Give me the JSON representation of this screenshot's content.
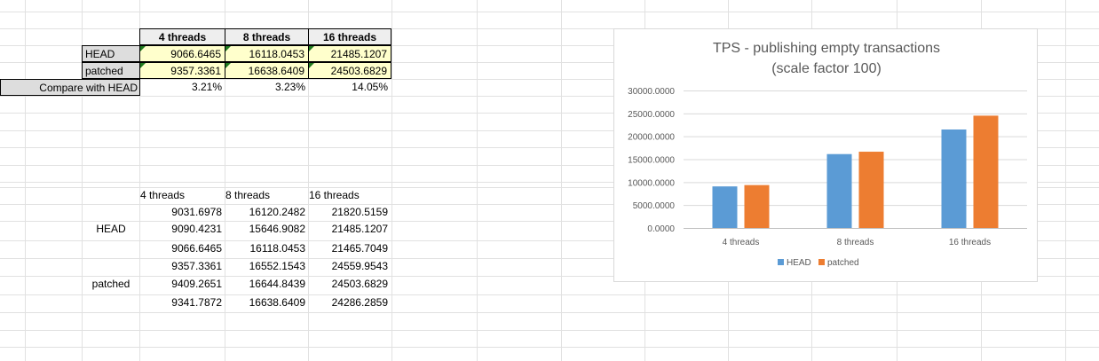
{
  "top_table": {
    "headers": [
      "4 threads",
      "8 threads",
      "16 threads"
    ],
    "rows": [
      {
        "label": "HEAD",
        "values": [
          "9066.6465",
          "16118.0453",
          "21485.1207"
        ]
      },
      {
        "label": "patched",
        "values": [
          "9357.3361",
          "16638.6409",
          "24503.6829"
        ]
      }
    ],
    "compare": {
      "label": "Compare with HEAD",
      "values": [
        "3.21%",
        "3.23%",
        "14.05%"
      ]
    }
  },
  "raw_table": {
    "headers": [
      "4 threads",
      "8 threads",
      "16 threads"
    ],
    "groups": [
      {
        "label": "HEAD",
        "rows": [
          [
            "9031.6978",
            "16120.2482",
            "21820.5159"
          ],
          [
            "9090.4231",
            "15646.9082",
            "21485.1207"
          ],
          [
            "9066.6465",
            "16118.0453",
            "21465.7049"
          ]
        ]
      },
      {
        "label": "patched",
        "rows": [
          [
            "9357.3361",
            "16552.1543",
            "24559.9543"
          ],
          [
            "9409.2651",
            "16644.8439",
            "24503.6829"
          ],
          [
            "9341.7872",
            "16638.6409",
            "24286.2859"
          ]
        ]
      }
    ]
  },
  "chart_data": {
    "type": "bar",
    "title_lines": [
      "TPS - publishing empty transactions",
      "(scale factor 100)"
    ],
    "categories": [
      "4 threads",
      "8 threads",
      "16 threads"
    ],
    "series": [
      {
        "name": "HEAD",
        "color": "#5b9bd5",
        "values": [
          9066.6465,
          16118.0453,
          21485.1207
        ]
      },
      {
        "name": "patched",
        "color": "#ed7d31",
        "values": [
          9357.3361,
          16638.6409,
          24503.6829
        ]
      }
    ],
    "ylim": [
      0,
      30000
    ],
    "ytick_labels": [
      "0.0000",
      "5000.0000",
      "10000.0000",
      "15000.0000",
      "20000.0000",
      "25000.0000",
      "30000.0000"
    ],
    "grid": true,
    "legend": "bottom"
  }
}
